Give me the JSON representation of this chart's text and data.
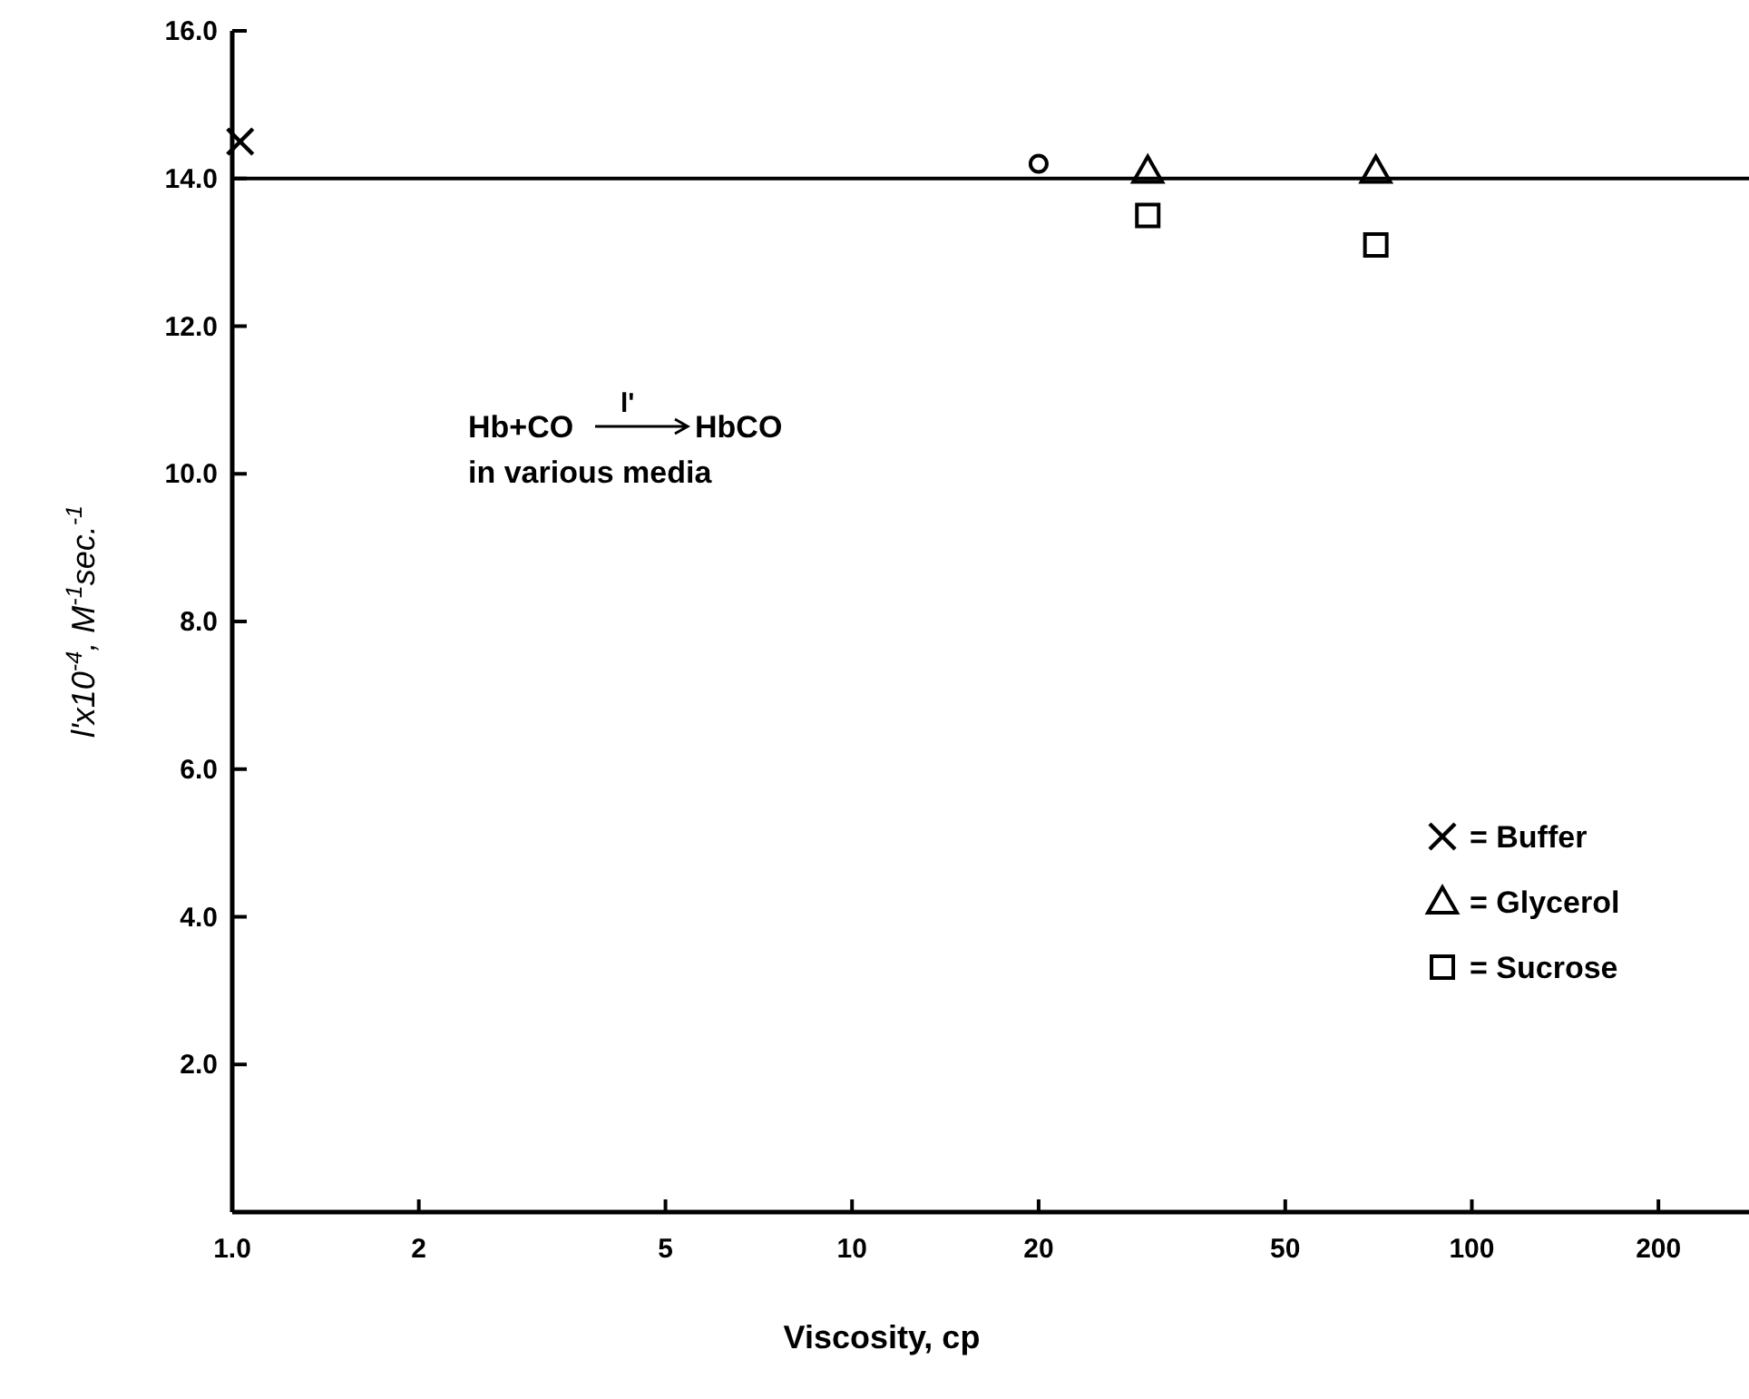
{
  "chart_data": {
    "type": "scatter",
    "xlabel": "Viscosity, cp",
    "ylabel": "l'x10$^{-4}$, M$^{-1}$sec.$^{-1}$",
    "log": "x",
    "grid": false,
    "legend": "bottom right",
    "xlim": [
      1,
      280
    ],
    "xticks": [
      {
        "value": 1,
        "label": "1.0"
      },
      2,
      5,
      10,
      20,
      50,
      100,
      200
    ],
    "ylim": [
      0,
      16
    ],
    "yticks": [
      {
        "value": 2,
        "label": "2.0"
      },
      {
        "value": 4,
        "label": "4.0"
      },
      {
        "value": 6,
        "label": "6.0"
      },
      {
        "value": 8,
        "label": "8.0"
      },
      {
        "value": 10,
        "label": "10.0"
      },
      {
        "value": 12,
        "label": "12.0"
      },
      {
        "value": 14,
        "label": "14.0"
      },
      {
        "value": 16,
        "label": "16.0"
      }
    ],
    "ref_lines": [
      {
        "axis": "y",
        "value": 14,
        "color": "#000000"
      }
    ],
    "annotations": [
      "Hb+CO",
      "l'",
      "HbCO",
      "in various media"
    ],
    "series": [
      {
        "name": "= Buffer",
        "color": "#000000",
        "marker": "cross",
        "x": [
          1.03
        ],
        "values": [
          14.5
        ]
      },
      {
        "color": "#000000",
        "marker": "circle",
        "x": [
          20
        ],
        "values": [
          14.2
        ]
      },
      {
        "name": "= Glycerol",
        "color": "#000000",
        "marker": "triangle",
        "x": [
          30,
          70
        ],
        "values": [
          14.1,
          14.1
        ]
      },
      {
        "name": "= Sucrose",
        "color": "#000000",
        "marker": "square",
        "x": [
          30,
          70
        ],
        "values": [
          13.5,
          13.1
        ]
      }
    ]
  }
}
